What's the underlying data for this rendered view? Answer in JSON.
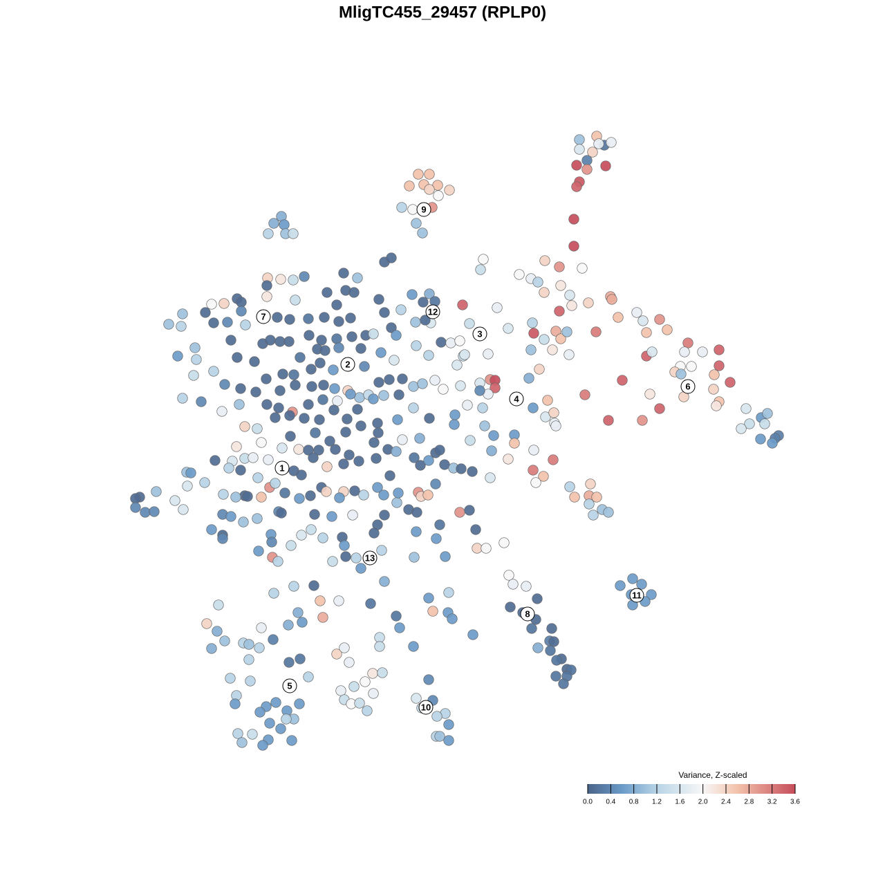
{
  "chart_data": {
    "type": "scatter",
    "title": "MligTC455_29457 (RPLP0)",
    "xlim": [
      0,
      128
    ],
    "ylim": [
      128,
      0
    ],
    "x": [
      83.8,
      86.3,
      87.4,
      88.4,
      86.6,
      83.8,
      85.7,
      84.9,
      83.4,
      84.9,
      87.6,
      83.8,
      83.4,
      83.0,
      83.0,
      60.5,
      62.1,
      59.2,
      61.3,
      63.3,
      62.1,
      65.0,
      63.4,
      58.1,
      59.7,
      62.5,
      60.2,
      61.1,
      40.7,
      39.6,
      41.1,
      38.8,
      41.3,
      42.4,
      38.7,
      40.6,
      42.4,
      44.0,
      38.6,
      38.6,
      34.3,
      34.9,
      32.4,
      30.6,
      42.7,
      26.4,
      29.7,
      34.9,
      30.9,
      32.9,
      35.5,
      24.4,
      26.2,
      28.2,
      25.7,
      28.4,
      33.4,
      34.3,
      36.8,
      30.9,
      28.0,
      32.5,
      34.8,
      37.0,
      26.4,
      29.1,
      32.1,
      34.6,
      40.1,
      41.9,
      44.6,
      46.9,
      49.0,
      50.7,
      47.3,
      48.7,
      50.0,
      51.2,
      49.7,
      51.7,
      55.6,
      56.6,
      54.8,
      55.6,
      58.0,
      59.6,
      61.2,
      62.1,
      62.9,
      62.3,
      56.6,
      57.3,
      60.1,
      61.5,
      38.0,
      39.1,
      40.5,
      41.8,
      44.7,
      46.5,
      48.7,
      50.9,
      52.9,
      54.0,
      43.4,
      45.9,
      47.0,
      49.0,
      52.2,
      55.1,
      57.0,
      60.2,
      62.0,
      63.8,
      38.5,
      40.9,
      42.5,
      45.0,
      46.3,
      48.2,
      52.7,
      54.8,
      56.3,
      58.2,
      59.8,
      62.9,
      64.1,
      66.6,
      67.0,
      40.5,
      42.7,
      45.1,
      46.8,
      48.4,
      50.3,
      52.0,
      53.3,
      55.5,
      57.7,
      61.1,
      38.6,
      40.3,
      42.3,
      44.6,
      46.7,
      48.8,
      50.7,
      54.0,
      39.8,
      41.9,
      44.0,
      46.2,
      48.3,
      50.2,
      51.7,
      54.6,
      57.5,
      59.8,
      62.1,
      37.2,
      37.8,
      35.4,
      42.0,
      45.6,
      47.7,
      50.0,
      52.2,
      54.7,
      58.2,
      60.7,
      34.2,
      40.8,
      43.2,
      44.6,
      46.1,
      48.5,
      50.5,
      54.1,
      56.1,
      57.3,
      59.9,
      63.0,
      63.6,
      33.6,
      35.4,
      36.6,
      38.8,
      42.5,
      43.6,
      45.3,
      47.3,
      49.7,
      51.9,
      54.4,
      56.4,
      60.8,
      62.0,
      64.3,
      65.6,
      66.7,
      68.3,
      70.9,
      71.1,
      68.0,
      65.7,
      65.8,
      67.6,
      69.8,
      70.1,
      71.4,
      31.1,
      33.1,
      34.8,
      37.3,
      39.0,
      39.8,
      41.2,
      37.8,
      35.4,
      35.8,
      34.1,
      32.3,
      29.6,
      27.1,
      27.0,
      27.6,
      25.3,
      26.5,
      22.6,
      20.2,
      19.6,
      19.6,
      21.0,
      22.3,
      43.3,
      44.9,
      46.5,
      47.2,
      49.7,
      49.1,
      51.3,
      52.6,
      54.6,
      55.5,
      57.4,
      57.6,
      59.1,
      60.5,
      60.9,
      61.9,
      63.0,
      40.3,
      40.7,
      45.5,
      48.0,
      51.0,
      55.6,
      54.6,
      60.3,
      66.5,
      67.9,
      32.2,
      33.4,
      35.2,
      37.2,
      30.6,
      32.2,
      32.2,
      39.2,
      39.3,
      42.1,
      43.6,
      45.0,
      46.7,
      49.5,
      49.8,
      54.1,
      60.2,
      63.6,
      68.8,
      37.4,
      39.4,
      40.2,
      48.1,
      50.0,
      51.5,
      52.2,
      55.2,
      59.9,
      63.1,
      64.4,
      69.0,
      70.3,
      72.9,
      69.9,
      69.5,
      75.1,
      76.8,
      77.8,
      78.8,
      80.9,
      84.2,
      81.1,
      82.4,
      78.7,
      82.7,
      85.1,
      88.3,
      88.5,
      80.9,
      66.9,
      71.9,
      67.9,
      73.5,
      77.0,
      77.2,
      78.7,
      76.8,
      80.4,
      81.1,
      82.0,
      79.9,
      82.3,
      86.2,
      65.2,
      66.5,
      70.6,
      67.2,
      66.1,
      69.4,
      70.9,
      71.6,
      71.6,
      70.6,
      69.4,
      76.5,
      78.0,
      79.2,
      77.1,
      78.9,
      80.1,
      80.2,
      80.4,
      74.4,
      74.4,
      73.5,
      77.2,
      80.0,
      77.1,
      78.6,
      77.5,
      89.4,
      92.1,
      93.0,
      95.4,
      96.5,
      93.5,
      93.5,
      94.3,
      99.5,
      101.6,
      99.0,
      98.4,
      100.0,
      97.6,
      98.5,
      104.0,
      104.0,
      105.6,
      103.3,
      103.2,
      90.0,
      84.6,
      94.0,
      104.0,
      103.6,
      98.9,
      95.4,
      92.9,
      88.0,
      107.9,
      110.1,
      111.0,
      110.6,
      108.4,
      107.2,
      110.0,
      112.6,
      112.1,
      111.7,
      82.4,
      85.4,
      83.1,
      85.2,
      86.3,
      85.2,
      87.1,
      88.0,
      85.8,
      73.6,
      74.2,
      76.1,
      77.7,
      73.8,
      75.6,
      77.5,
      76.9,
      79.8,
      77.8,
      79.5,
      80.1,
      79.6,
      81.2,
      80.5,
      82.0,
      82.6,
      80.4,
      82.0,
      81.5,
      91.5,
      89.7,
      92.8,
      91.3,
      94.2,
      91.5,
      93.3,
      45.4,
      42.5,
      39.6,
      46.3,
      49.0,
      55.6,
      53.6,
      62.0,
      64.9,
      43.1,
      46.7,
      62.6,
      64.8,
      65.4,
      57.3,
      57.8,
      68.4,
      59.8,
      31.6,
      29.9,
      31.4,
      32.5,
      30.6,
      37.8,
      39.5,
      41.7,
      43.7,
      35.2,
      36.0,
      37.5,
      36.0,
      41.8,
      43.4,
      48.7,
      49.8,
      50.5,
      54.9,
      54.9,
      53.9,
      55.3,
      52.8,
      51.2,
      49.3,
      54.0,
      44.6,
      33.3,
      36.2,
      34.2,
      34.0,
      38.5,
      39.9,
      41.5,
      37.6,
      43.3,
      42.5,
      41.4,
      39.0,
      34.4,
      36.5,
      35.0,
      38.8,
      38.0,
      42.2,
      40.6,
      49.8,
      50.8,
      52.0,
      53.1,
      62.0,
      62.6,
      60.2,
      61.0,
      64.4,
      63.2,
      64.9,
      63.1,
      63.6,
      64.9
    ],
    "y": [
      20.2,
      19.7,
      21.0,
      20.6,
      20.8,
      21.6,
      22.0,
      23.2,
      23.9,
      24.5,
      24.0,
      26.3,
      27.0,
      31.7,
      35.6,
      25.2,
      25.2,
      26.9,
      26.7,
      26.8,
      27.4,
      27.5,
      28.3,
      30.0,
      30.3,
      30.0,
      32.3,
      33.7,
      31.3,
      32.3,
      32.5,
      33.8,
      33.8,
      33.8,
      40.2,
      40.4,
      40.5,
      40.0,
      41.3,
      42.9,
      43.2,
      43.7,
      43.9,
      44.0,
      43.4,
      45.4,
      45.2,
      45.0,
      46.7,
      46.6,
      47.0,
      46.9,
      47.2,
      50.3,
      51.5,
      52.0,
      49.2,
      51.7,
      52.3,
      53.7,
      54.3,
      55.6,
      56.2,
      56.7,
      57.6,
      58.1,
      59.5,
      58.5,
      45.9,
      46.2,
      46.1,
      45.9,
      46.5,
      46.0,
      42.3,
      44.1,
      42.0,
      42.3,
      39.5,
      40.2,
      37.9,
      37.3,
      43.3,
      45.2,
      44.8,
      42.6,
      43.7,
      42.5,
      43.6,
      46.7,
      47.4,
      48.5,
      46.6,
      46.3,
      49.7,
      49.2,
      49.4,
      49.4,
      48.5,
      49.2,
      49.0,
      48.7,
      48.5,
      48.3,
      51.7,
      50.5,
      50.7,
      50.3,
      50.4,
      51.0,
      52.1,
      50.0,
      51.4,
      49.5,
      54.8,
      54.1,
      54.2,
      53.4,
      52.5,
      53.5,
      53.0,
      55.3,
      54.9,
      54.8,
      55.9,
      55.0,
      56.3,
      55.8,
      51.5,
      56.5,
      55.7,
      55.9,
      55.7,
      56.2,
      56.5,
      57.5,
      57.1,
      57.2,
      57.1,
      55.5,
      58.5,
      59.0,
      59.6,
      58.5,
      57.8,
      58.0,
      57.0,
      57.7,
      60.4,
      60.1,
      60.5,
      60.7,
      59.3,
      60.6,
      59.2,
      61.2,
      60.7,
      59.0,
      60.5,
      62.0,
      64.0,
      61.7,
      63.1,
      62.6,
      63.8,
      62.5,
      61.6,
      62.6,
      63.6,
      63.4,
      64.6,
      64.8,
      65.0,
      65.1,
      65.1,
      65.0,
      65.8,
      64.0,
      65.0,
      65.3,
      66.2,
      65.5,
      65.1,
      66.7,
      66.3,
      66.2,
      66.5,
      68.1,
      68.7,
      66.2,
      67.5,
      67.1,
      66.7,
      66.3,
      68.8,
      67.3,
      66.6,
      67.2,
      67.7,
      67.8,
      68.2,
      69.1,
      65.2,
      63.7,
      61.4,
      60.0,
      58.6,
      59.0,
      61.6,
      63.0,
      66.6,
      67.7,
      68.0,
      69.1,
      70.5,
      69.9,
      71.3,
      71.9,
      71.7,
      71.8,
      71.9,
      71.5,
      69.8,
      70.3,
      68.3,
      68.4,
      72.4,
      73.7,
      71.1,
      71.9,
      72.1,
      73.4,
      74.1,
      74.0,
      72.1,
      71.7,
      70.5,
      71.1,
      71.1,
      72.0,
      71.0,
      71.6,
      70.5,
      71.6,
      72.7,
      71.3,
      73.7,
      71.2,
      71.8,
      71.6,
      70.0,
      74.0,
      74.2,
      74.4,
      74.7,
      74.5,
      74.5,
      75.9,
      74.1,
      74.1,
      73.8,
      74.4,
      74.7,
      75.5,
      75.0,
      76.6,
      77.4,
      77.9,
      77.3,
      78.4,
      78.9,
      77.4,
      76.6,
      77.8,
      77.7,
      78.9,
      77.1,
      76.9,
      75.9,
      76.6,
      79.7,
      80.6,
      81.2,
      81.2,
      80.5,
      80.7,
      82.2,
      79.6,
      80.6,
      77.9,
      80.5,
      79.3,
      79.3,
      78.5,
      37.5,
      39.0,
      39.7,
      40.3,
      40.8,
      37.7,
      38.6,
      38.8,
      41.3,
      42.7,
      42.3,
      44.2,
      43.8,
      42.9,
      43.3,
      45.0,
      44.1,
      44.5,
      46.8,
      47.5,
      46.7,
      48.2,
      49.1,
      50.6,
      47.9,
      49.0,
      48.0,
      50.6,
      51.3,
      48.0,
      49.6,
      49.3,
      51.2,
      51.3,
      52.8,
      55.4,
      54.9,
      55.0,
      56.1,
      57.0,
      56.5,
      54.7,
      53.4,
      57.9,
      59.0,
      60.3,
      59.7,
      61.2,
      61.6,
      62.9,
      64.1,
      66.4,
      65.1,
      66.5,
      68.0,
      68.9,
      69.8,
      45.9,
      45.2,
      46.4,
      46.2,
      47.7,
      48.1,
      51.5,
      50.9,
      49.6,
      50.9,
      50.9,
      53.0,
      53.0,
      53.8,
      54.1,
      50.6,
      52.9,
      55.3,
      54.2,
      56.3,
      55.0,
      57.1,
      57.0,
      58.1,
      58.7,
      57.4,
      59.1,
      60.8,
      60.8,
      59.1,
      60.4,
      59.8,
      61.3,
      61.3,
      62.0,
      63.5,
      63.0,
      63.4,
      64.1,
      70.4,
      70.0,
      71.9,
      71.7,
      71.9,
      72.9,
      73.7,
      74.1,
      74.5,
      83.2,
      84.5,
      84.8,
      86.6,
      87.8,
      88.6,
      89.6,
      90.9,
      90.9,
      93.7,
      92.7,
      92.8,
      94.1,
      95.3,
      95.5,
      96.8,
      96.9,
      97.8,
      97.8,
      98.9,
      83.7,
      84.7,
      84.5,
      86.0,
      86.0,
      87.5,
      87.0,
      84.7,
      84.8,
      85.8,
      86.9,
      86.9,
      84.1,
      87.3,
      86.5,
      85.7,
      88.6,
      89.3,
      88.4,
      88.6,
      89.5,
      89.1,
      90.8,
      91.8,
      93.5,
      87.5,
      90.2,
      91.3,
      92.7,
      93.8,
      90.8,
      92.5,
      90.4,
      90.0,
      93.0,
      93.2,
      93.7,
      95.4,
      95.8,
      95.3,
      94.6,
      93.7,
      95.8,
      92.2,
      93.5,
      97.4,
      97.3,
      98.6,
      99.3,
      99.9,
      100.3,
      97.9,
      98.1,
      98.5,
      100.6,
      101.8,
      102.2,
      101.6,
      102.8,
      103.0,
      101.8,
      104.0,
      104.0,
      104.6,
      106.1,
      106.2,
      107.4,
      107.0,
      107.8,
      107.1,
      105.4,
      101.2,
      101.8,
      101.7,
      102.8,
      98.3,
      101.3,
      101.0,
      102.4,
      103.2,
      103.6,
      104.8,
      106.5,
      106.5,
      107.1
    ],
    "values": [
      1.0,
      2.6,
      0.2,
      1.8,
      1.8,
      1.6,
      2.4,
      0.3,
      3.6,
      3.0,
      3.6,
      3.5,
      3.4,
      3.6,
      3.6,
      2.6,
      2.6,
      2.6,
      2.6,
      2.6,
      2.4,
      2.4,
      2.0,
      1.2,
      2.0,
      3.0,
      1.0,
      1.0,
      0.8,
      0.8,
      0.6,
      1.2,
      1.0,
      1.4,
      2.4,
      2.2,
      1.4,
      0.4,
      0.1,
      2.2,
      0.1,
      0.1,
      2.4,
      2.0,
      1.4,
      1.0,
      0.1,
      0.4,
      0.1,
      0.4,
      1.2,
      1.0,
      1.2,
      1.0,
      0.6,
      1.2,
      0.1,
      0.1,
      0.1,
      1.2,
      1.4,
      0.4,
      0.1,
      0.1,
      1.2,
      0.4,
      1.8,
      1.0,
      0.1,
      0.1,
      0.2,
      0.1,
      0.1,
      0.1,
      0.1,
      0.1,
      0.1,
      0.1,
      0.1,
      1.0,
      0.1,
      0.1,
      0.1,
      0.1,
      1.2,
      0.6,
      0.1,
      0.8,
      0.2,
      1.6,
      0.1,
      0.6,
      1.0,
      0.1,
      0.1,
      0.1,
      0.1,
      0.1,
      0.1,
      0.1,
      0.2,
      0.1,
      0.1,
      1.4,
      0.2,
      0.1,
      0.1,
      0.4,
      0.1,
      0.6,
      1.6,
      1.2,
      1.2,
      0.1,
      0.1,
      0.1,
      0.2,
      0.1,
      0.1,
      0.6,
      0.4,
      0.1,
      0.1,
      0.1,
      1.0,
      1.8,
      2.0,
      1.6,
      1.4,
      0.1,
      0.1,
      0.1,
      0.1,
      0.6,
      2.4,
      1.0,
      1.3,
      1.0,
      0.1,
      1.0,
      0.1,
      0.1,
      3.0,
      0.1,
      0.2,
      1.8,
      0.6,
      0.6,
      0.1,
      0.1,
      0.1,
      0.1,
      0.1,
      0.1,
      0.1,
      0.1,
      0.6,
      1.2,
      0.1,
      1.4,
      2.0,
      2.4,
      0.1,
      0.2,
      0.1,
      0.1,
      0.1,
      0.1,
      1.8,
      0.8,
      2.2,
      1.6,
      2.2,
      0.1,
      0.1,
      0.1,
      0.1,
      0.1,
      0.1,
      0.8,
      0.2,
      0.1,
      0.1,
      1.6,
      1.4,
      1.8,
      1.8,
      0.1,
      0.1,
      0.1,
      2.4,
      0.1,
      0.1,
      0.1,
      0.1,
      0.1,
      0.6,
      0.1,
      1.0,
      0.1,
      0.1,
      1.6,
      0.8,
      1.4,
      0.6,
      0.6,
      1.8,
      1.2,
      1.0,
      0.6,
      0.1,
      1.2,
      0.1,
      1.2,
      3.0,
      1.2,
      0.2,
      2.6,
      0.1,
      0.1,
      1.0,
      1.2,
      1.2,
      1.6,
      1.0,
      0.6,
      1.6,
      1.6,
      1.0,
      0.1,
      0.1,
      0.4,
      0.4,
      0.4,
      0.6,
      0.1,
      0.1,
      2.4,
      2.4,
      0.6,
      0.1,
      1.2,
      0.6,
      0.6,
      1.0,
      0.6,
      0.1,
      3.0,
      2.4,
      2.6,
      0.4,
      0.4,
      0.1,
      0.1,
      0.6,
      1.8,
      0.1,
      0.1,
      0.1,
      3.0,
      0.1,
      0.4,
      0.6,
      1.0,
      1.0,
      0.6,
      0.1,
      0.4,
      0.6,
      0.4,
      1.4,
      1.6,
      1.4,
      1.2,
      0.1,
      0.6,
      0.1,
      0.6,
      0.2,
      0.1,
      0.6,
      3.0,
      1.2,
      1.4,
      0.1,
      1.2,
      0.6,
      1.2,
      1.0,
      0.6,
      0.6,
      2.4,
      2.0,
      2.0,
      2.0,
      1.4,
      2.0,
      1.8,
      1.2,
      2.4,
      3.0,
      2.0,
      2.2,
      1.6,
      2.4,
      2.2,
      2.4,
      2.8,
      2.8,
      3.4,
      3.4,
      1.8,
      1.4,
      1.6,
      1.2,
      3.5,
      1.4,
      1.0,
      2.8,
      2.6,
      1.0,
      2.2,
      1.8,
      3.2,
      1.8,
      2.0,
      1.8,
      1.6,
      1.6,
      1.6,
      3.0,
      3.6,
      3.4,
      1.8,
      0.4,
      0.8,
      2.4,
      2.6,
      0.6,
      1.6,
      2.4,
      1.8,
      1.8,
      0.6,
      2.6,
      2.2,
      1.8,
      3.2,
      3.2,
      2.6,
      2.0,
      2.6,
      1.8,
      1.6,
      3.0,
      2.6,
      2.6,
      3.4,
      1.6,
      3.2,
      1.8,
      1.8,
      2.0,
      2.0,
      2.4,
      1.0,
      3.4,
      3.4,
      3.4,
      2.6,
      2.4,
      3.4,
      3.2,
      2.2,
      2.6,
      2.2,
      2.4,
      3.4,
      3.0,
      3.4,
      1.6,
      0.6,
      1.0,
      1.4,
      1.4,
      1.6,
      0.6,
      0.3,
      0.3,
      0.6,
      1.2,
      2.4,
      2.6,
      2.8,
      2.6,
      1.2,
      1.0,
      1.0,
      1.2,
      2.0,
      1.8,
      1.8,
      0.1,
      0.1,
      0.1,
      0.1,
      0.2,
      0.1,
      0.8,
      0.3,
      0.1,
      0.2,
      0.1,
      0.2,
      0.1,
      0.2,
      0.2,
      0.2,
      0.2,
      0.6,
      0.6,
      0.6,
      0.6,
      0.6,
      0.6,
      0.6,
      0.1,
      1.2,
      1.2,
      2.6,
      1.8,
      0.8,
      0.2,
      0.6,
      1.2,
      0.8,
      2.8,
      2.6,
      0.6,
      0.6,
      0.2,
      0.6,
      0.6,
      0.6,
      1.4,
      2.4,
      0.8,
      1.0,
      0.8,
      1.8,
      0.3,
      0.8,
      0.6,
      1.2,
      1.0,
      1.2,
      1.2,
      0.2,
      0.2,
      2.4,
      1.8,
      1.8,
      1.4,
      1.4,
      2.2,
      1.4,
      2.0,
      1.4,
      1.8,
      1.8,
      1.2,
      1.2,
      1.2,
      1.2,
      0.6,
      0.6,
      0.6,
      0.6,
      0.6,
      0.6,
      1.0,
      1.2,
      0.6,
      1.2,
      1.4,
      1.0,
      0.6,
      0.6,
      0.6,
      0.6,
      1.4,
      2.0,
      1.4,
      1.2,
      0.4,
      0.4,
      1.6,
      1.4,
      1.2,
      1.2,
      0.6,
      1.2,
      1.0,
      0.6
    ],
    "cluster_labels": [
      {
        "text": "1",
        "x": 40.8,
        "y": 67.7
      },
      {
        "text": "2",
        "x": 50.3,
        "y": 52.7
      },
      {
        "text": "3",
        "x": 69.4,
        "y": 48.3
      },
      {
        "text": "4",
        "x": 74.7,
        "y": 57.7
      },
      {
        "text": "5",
        "x": 41.9,
        "y": 99.2
      },
      {
        "text": "6",
        "x": 99.5,
        "y": 55.9
      },
      {
        "text": "7",
        "x": 38.1,
        "y": 45.8
      },
      {
        "text": "8",
        "x": 76.3,
        "y": 88.8
      },
      {
        "text": "9",
        "x": 61.3,
        "y": 30.3
      },
      {
        "text": "10",
        "x": 61.6,
        "y": 102.3
      },
      {
        "text": "11",
        "x": 92.1,
        "y": 86.1
      },
      {
        "text": "12",
        "x": 62.6,
        "y": 45.1
      },
      {
        "text": "13",
        "x": 53.5,
        "y": 80.7
      }
    ],
    "colorbar": {
      "title": "Variance, Z-scaled",
      "ticks": [
        {
          "value": 0,
          "label": "0.0"
        },
        0.4,
        0.8,
        1.2,
        1.6,
        {
          "value": 2,
          "label": "2.0"
        },
        2.4,
        2.8,
        3.2,
        3.6
      ],
      "color_stops": [
        {
          "value": 0,
          "color": "#4a6489"
        },
        {
          "value": 0.6,
          "color": "#6b9bc8"
        },
        {
          "value": 1.2,
          "color": "#b8d4e6"
        },
        {
          "value": 2,
          "color": "#f7f7f7"
        },
        {
          "value": 2.6,
          "color": "#f3c2ab"
        },
        {
          "value": 3.6,
          "color": "#c64d5b"
        }
      ]
    },
    "legend_position": "bottom-right"
  }
}
